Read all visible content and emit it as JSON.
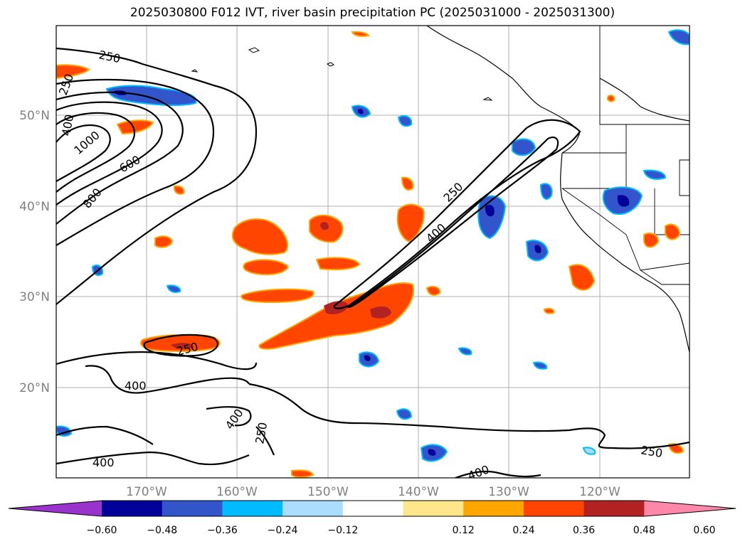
{
  "title": "2025030800 F012 IVT, river basin precipitation PC (2025031000 - 2025031300)",
  "map": {
    "lon_ticks": [
      "170°W",
      "160°W",
      "150°W",
      "140°W",
      "130°W",
      "120°W"
    ],
    "lat_ticks": [
      "50°N",
      "40°N",
      "30°N",
      "20°N"
    ],
    "contour_labels": {
      "c250_nw": "250",
      "c250_nw2": "250",
      "c400_nw": "400",
      "c1000": "1000",
      "c600": "600",
      "c800": "800",
      "c250_ar": "250",
      "c400_ar": "400",
      "c250_sub": "250",
      "c400_sub": "400",
      "c400_s1": "400",
      "c250_s": "250",
      "c400_sw": "400",
      "c250_se": "250",
      "c400_se": "400"
    }
  },
  "colorbar": {
    "colors": [
      "#9933cc",
      "#000099",
      "#3355cc",
      "#00bbff",
      "#aaddff",
      "#ffffff",
      "#ffe68a",
      "#ffa500",
      "#ff4500",
      "#b22222",
      "#ff88aa"
    ],
    "tick_labels": [
      "−0.60",
      "−0.48",
      "−0.36",
      "−0.24",
      "−0.12",
      "0.12",
      "0.24",
      "0.36",
      "0.48",
      "0.60"
    ]
  }
}
